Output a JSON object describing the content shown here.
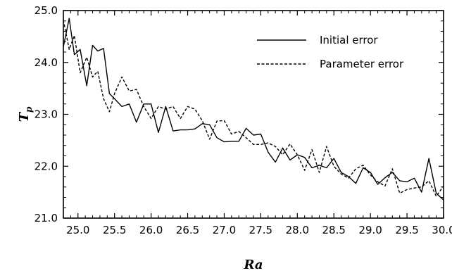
{
  "chart_data": {
    "type": "line",
    "xlabel": "Ra",
    "ylabel": "T",
    "ylabel_subscript": "p",
    "xlim": [
      24.8,
      30.0
    ],
    "ylim": [
      21.0,
      25.0
    ],
    "xticks": [
      "25.0",
      "25.5",
      "26.0",
      "26.5",
      "27.0",
      "27.5",
      "28.0",
      "28.5",
      "29.0",
      "29.5",
      "30.0"
    ],
    "yticks": [
      "21.0",
      "22.0",
      "23.0",
      "24.0",
      "25.0"
    ],
    "x_tick_values": [
      25.0,
      25.5,
      26.0,
      26.5,
      27.0,
      27.5,
      28.0,
      28.5,
      29.0,
      29.5,
      30.0
    ],
    "y_tick_values": [
      21.0,
      22.0,
      23.0,
      24.0,
      25.0
    ],
    "grid": false,
    "legend_position": "top-right",
    "series": [
      {
        "name": "Initial error",
        "style": "solid",
        "color": "#000000",
        "x": [
          24.8,
          24.88,
          24.95,
          25.03,
          25.12,
          25.2,
          25.27,
          25.35,
          25.43,
          25.5,
          25.6,
          25.7,
          25.8,
          25.9,
          26.0,
          26.1,
          26.2,
          26.3,
          26.4,
          26.5,
          26.6,
          26.7,
          26.8,
          26.9,
          27.0,
          27.1,
          27.2,
          27.3,
          27.4,
          27.5,
          27.6,
          27.7,
          27.8,
          27.9,
          28.0,
          28.1,
          28.2,
          28.3,
          28.4,
          28.5,
          28.6,
          28.7,
          28.8,
          28.9,
          29.0,
          29.1,
          29.2,
          29.3,
          29.4,
          29.5,
          29.6,
          29.7,
          29.8,
          29.9,
          30.0
        ],
        "y": [
          24.3,
          24.85,
          24.15,
          24.25,
          23.55,
          24.33,
          24.22,
          24.27,
          23.4,
          23.3,
          23.15,
          23.2,
          22.85,
          23.2,
          23.2,
          22.65,
          23.15,
          22.68,
          22.7,
          22.7,
          22.72,
          22.82,
          22.8,
          22.55,
          22.47,
          22.48,
          22.48,
          22.73,
          22.6,
          22.62,
          22.27,
          22.08,
          22.35,
          22.12,
          22.22,
          22.17,
          21.97,
          22.02,
          21.97,
          22.15,
          21.88,
          21.8,
          21.67,
          21.97,
          21.88,
          21.65,
          21.78,
          21.88,
          21.72,
          21.7,
          21.77,
          21.5,
          22.15,
          21.48,
          21.35
        ]
      },
      {
        "name": "Parameter error",
        "style": "dashed",
        "color": "#000000",
        "x": [
          24.8,
          24.88,
          24.95,
          25.03,
          25.12,
          25.2,
          25.27,
          25.35,
          25.43,
          25.5,
          25.6,
          25.7,
          25.8,
          25.9,
          26.0,
          26.1,
          26.2,
          26.3,
          26.4,
          26.5,
          26.6,
          26.7,
          26.8,
          26.9,
          27.0,
          27.1,
          27.2,
          27.3,
          27.4,
          27.5,
          27.6,
          27.7,
          27.8,
          27.9,
          28.0,
          28.1,
          28.2,
          28.3,
          28.4,
          28.5,
          28.6,
          28.7,
          28.8,
          28.9,
          29.0,
          29.1,
          29.2,
          29.3,
          29.4,
          29.5,
          29.6,
          29.7,
          29.8,
          29.9,
          30.0
        ],
        "y": [
          24.82,
          24.25,
          24.52,
          23.8,
          24.1,
          23.72,
          23.83,
          23.3,
          23.05,
          23.4,
          23.72,
          23.45,
          23.48,
          23.15,
          22.92,
          23.15,
          23.1,
          23.15,
          22.92,
          23.15,
          23.1,
          22.88,
          22.52,
          22.87,
          22.88,
          22.62,
          22.67,
          22.55,
          22.42,
          22.42,
          22.45,
          22.38,
          22.22,
          22.43,
          22.22,
          21.92,
          22.32,
          21.88,
          22.38,
          22.0,
          21.85,
          21.77,
          21.95,
          22.02,
          21.83,
          21.7,
          21.62,
          21.95,
          21.48,
          21.55,
          21.58,
          21.6,
          21.72,
          21.42,
          21.62
        ]
      }
    ]
  }
}
